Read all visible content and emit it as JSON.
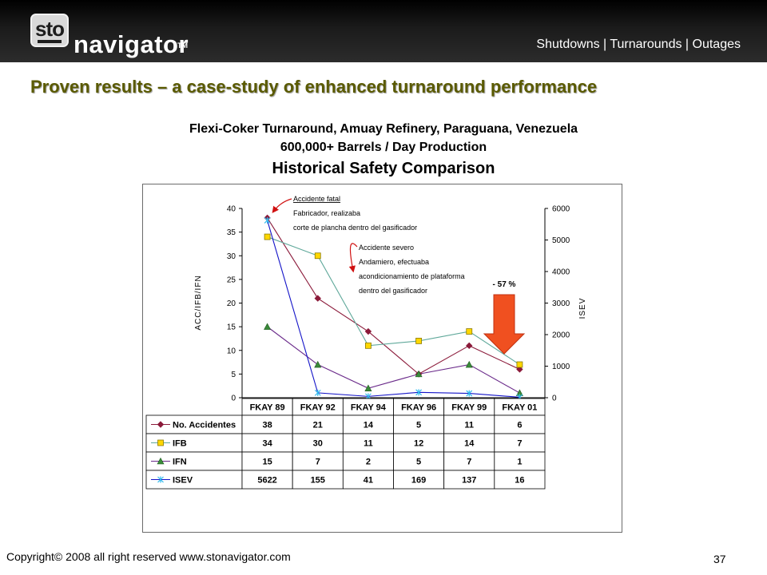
{
  "header": {
    "logo_text": "sto",
    "logo_word": "navigator",
    "logo_tm": "TM",
    "tagline": "Shutdowns | Turnarounds | Outages"
  },
  "slide_title": "Proven results – a case-study of enhanced turnaround performance",
  "subtitle_line1": "Flexi-Coker Turnaround, Amuay Refinery, Paraguana, Venezuela",
  "subtitle_line2": "600,000+ Barrels / Day Production",
  "subtitle_line3": "Historical Safety Comparison",
  "footer": {
    "copyright": "Copyright© 2008 all right reserved www.stonavigator.com",
    "page_number": "37"
  },
  "colors": {
    "accidents": "#8b1a3a",
    "ifb_line": "#5fa89a",
    "ifb_marker": "#ffd700",
    "ifn": "#6a2a8a",
    "ifn_marker": "#3a8a3a",
    "isev": "#1414c8",
    "isev_marker": "#33bbee",
    "arrow": "#f05020",
    "annotation_arrow": "#d01010",
    "title": "#5a5a00"
  },
  "chart_data": {
    "type": "line",
    "categories": [
      "FKAY 89",
      "FKAY 92",
      "FKAY 94",
      "FKAY 96",
      "FKAY 99",
      "FKAY 01"
    ],
    "ylabel": "ACC/IFB/IFN",
    "ylabel_right": "ISEV",
    "ylim": [
      0,
      40
    ],
    "ylim_right": [
      0,
      6000
    ],
    "yticks": [
      0,
      5,
      10,
      15,
      20,
      25,
      30,
      35,
      40
    ],
    "yticks_right": [
      0,
      1000,
      2000,
      3000,
      4000,
      5000,
      6000
    ],
    "series": [
      {
        "name": "No. Accidentes",
        "axis": "left",
        "values": [
          38,
          21,
          14,
          5,
          11,
          6
        ],
        "marker": "diamond"
      },
      {
        "name": "IFB",
        "axis": "left",
        "values": [
          34,
          30,
          11,
          12,
          14,
          7
        ],
        "marker": "square"
      },
      {
        "name": "IFN",
        "axis": "left",
        "values": [
          15,
          7,
          2,
          5,
          7,
          1
        ],
        "marker": "triangle"
      },
      {
        "name": "ISEV",
        "axis": "right",
        "values": [
          5622,
          155,
          41,
          169,
          137,
          16
        ],
        "marker": "star"
      }
    ],
    "annotations": [
      [
        "Accidente fatal",
        "Fabricador, realizaba",
        "corte de plancha dentro del gasificador"
      ],
      [
        "Accidente severo",
        "Andamiero, efectuaba",
        "acondicionamiento de plataforma",
        "dentro del gasificador"
      ]
    ],
    "reduction_label": "- 57 %",
    "grid": false,
    "legend": "data-table"
  }
}
